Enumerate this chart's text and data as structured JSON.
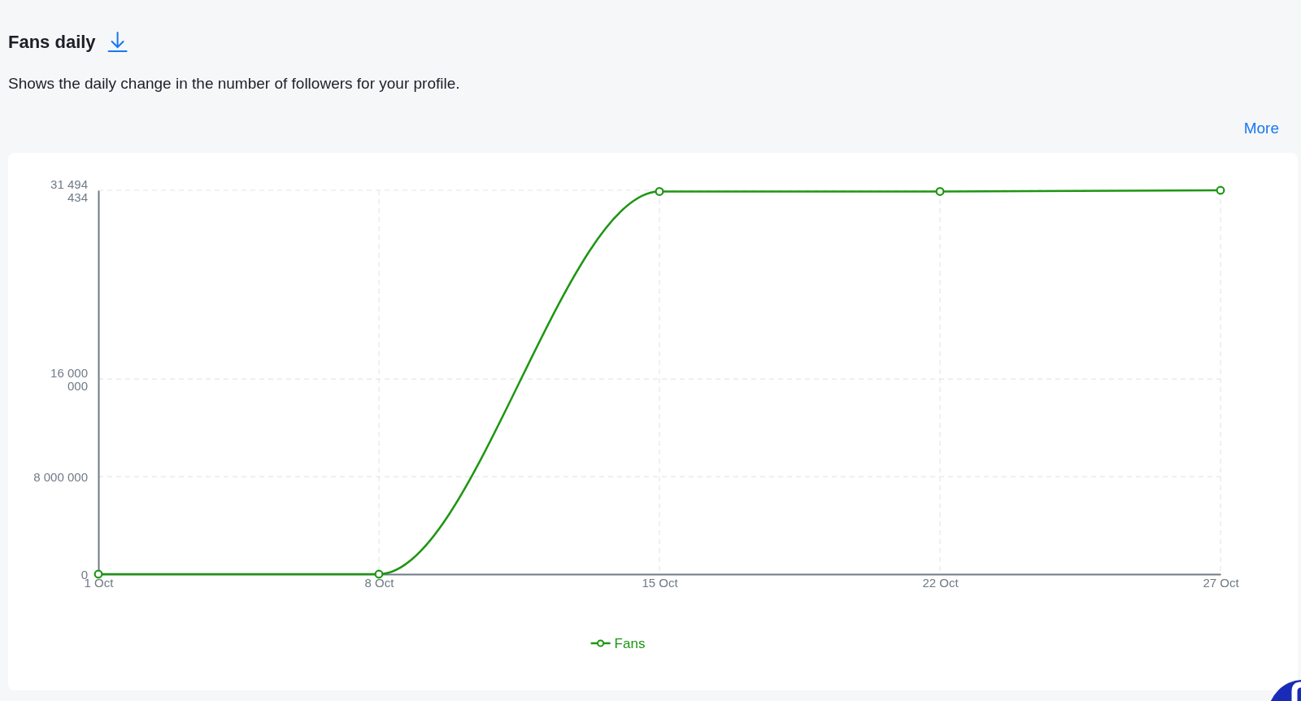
{
  "chart_data": {
    "type": "line",
    "title": "Fans daily",
    "subtitle": "Shows the daily change in the number of followers for your profile.",
    "annotations": [
      "More"
    ],
    "categories": [
      "1 Oct",
      "8 Oct",
      "15 Oct",
      "22 Oct",
      "27 Oct"
    ],
    "series": [
      {
        "name": "Fans",
        "color": "#1e9613",
        "values": [
          0,
          0,
          31400000,
          31400000,
          31494434
        ]
      }
    ],
    "ylim": [
      0,
      31494434
    ],
    "yticks": [
      0,
      {
        "value": 8000000,
        "label": "8 000 000"
      },
      {
        "value": 16000000,
        "label": "16 000 000"
      },
      {
        "value": 31494434,
        "label": "31 494 434"
      }
    ],
    "grid": true,
    "legend": "bottom",
    "marker": "circle",
    "line_style": "solid"
  }
}
